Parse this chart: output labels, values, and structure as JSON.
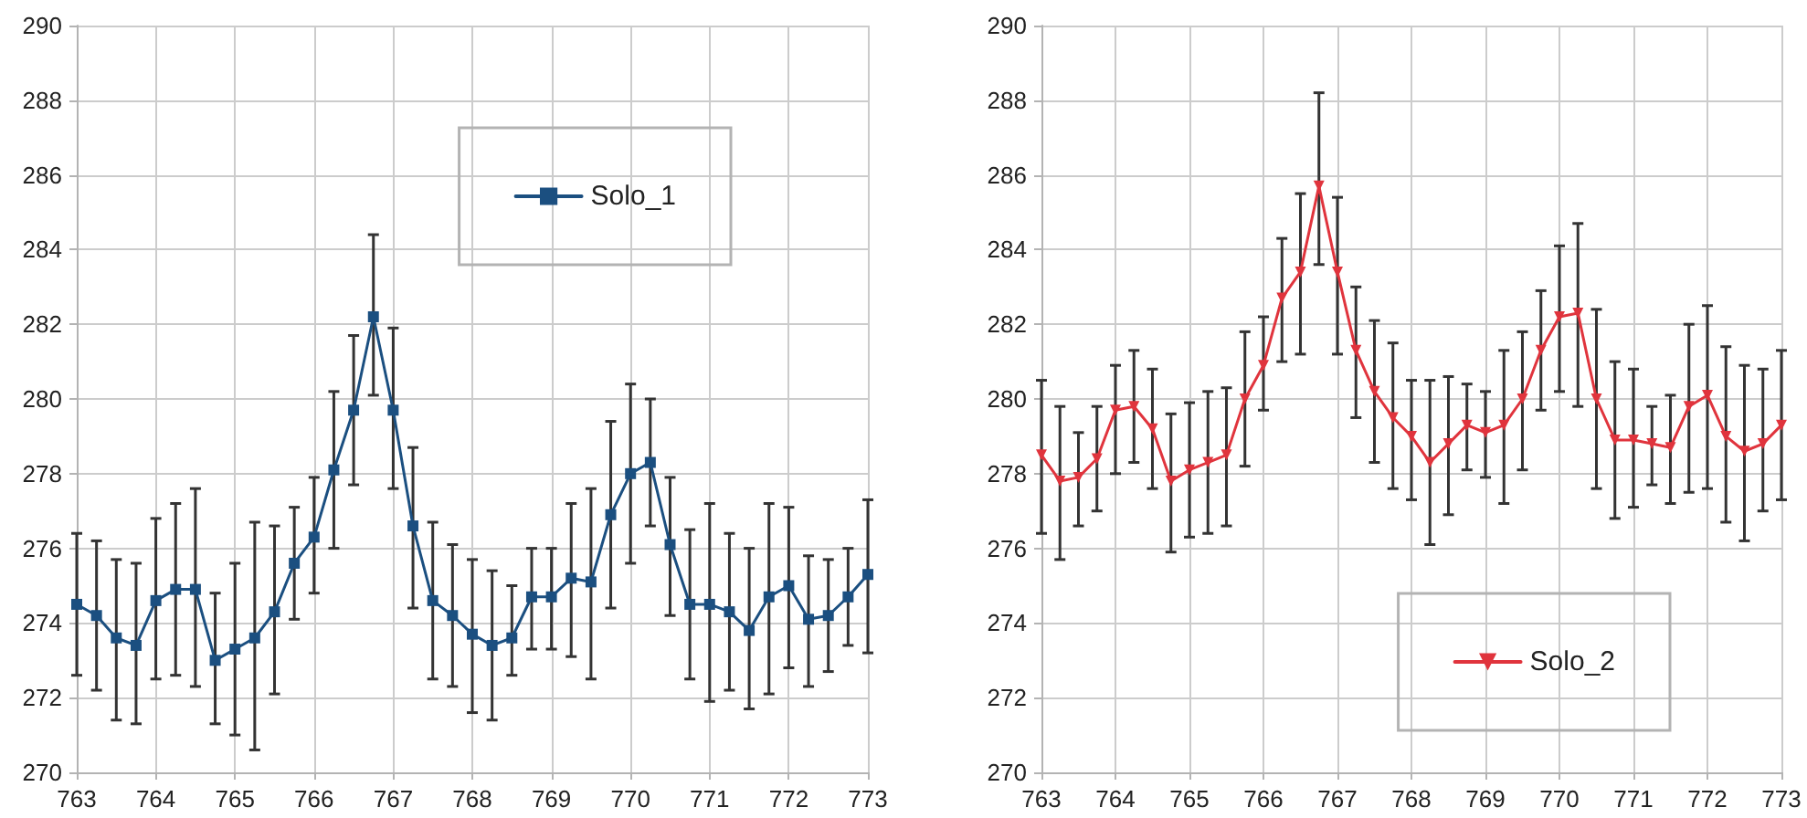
{
  "chart_data": [
    {
      "type": "line",
      "x": [
        763,
        763.25,
        763.5,
        763.75,
        764,
        764.25,
        764.5,
        764.75,
        765,
        765.25,
        765.5,
        765.75,
        766,
        766.25,
        766.5,
        766.75,
        767,
        767.25,
        767.5,
        767.75,
        768,
        768.25,
        768.5,
        768.75,
        769,
        769.25,
        769.5,
        769.75,
        770,
        770.25,
        770.5,
        770.75,
        771,
        771.25,
        771.5,
        771.75,
        772,
        772.25,
        772.5,
        772.75,
        773
      ],
      "series": [
        {
          "name": "Solo_1",
          "color": "#1b4f80",
          "values": [
            274.5,
            274.2,
            273.6,
            273.4,
            274.6,
            274.9,
            274.9,
            273.0,
            273.3,
            273.6,
            274.3,
            275.6,
            276.3,
            278.1,
            279.7,
            282.2,
            279.7,
            276.6,
            274.6,
            274.2,
            273.7,
            273.4,
            273.6,
            274.7,
            274.7,
            275.2,
            275.1,
            276.9,
            278.0,
            278.3,
            276.1,
            274.5,
            274.5,
            274.3,
            273.8,
            274.7,
            275.0,
            274.1,
            274.2,
            274.7,
            275.3
          ],
          "errors": [
            [
              272.6,
              276.4
            ],
            [
              272.2,
              276.2
            ],
            [
              271.4,
              275.7
            ],
            [
              271.3,
              275.6
            ],
            [
              272.5,
              276.8
            ],
            [
              272.6,
              277.2
            ],
            [
              272.3,
              277.6
            ],
            [
              271.3,
              274.8
            ],
            [
              271.0,
              275.6
            ],
            [
              270.6,
              276.7
            ],
            [
              272.1,
              276.6
            ],
            [
              274.1,
              277.1
            ],
            [
              274.8,
              277.9
            ],
            [
              276.0,
              280.2
            ],
            [
              277.7,
              281.7
            ],
            [
              280.1,
              284.4
            ],
            [
              277.6,
              281.9
            ],
            [
              274.4,
              278.7
            ],
            [
              272.5,
              276.7
            ],
            [
              272.3,
              276.1
            ],
            [
              271.6,
              275.7
            ],
            [
              271.4,
              275.4
            ],
            [
              272.6,
              275.0
            ],
            [
              273.3,
              276.0
            ],
            [
              273.3,
              276.0
            ],
            [
              273.1,
              277.2
            ],
            [
              272.5,
              277.6
            ],
            [
              274.4,
              279.4
            ],
            [
              275.6,
              280.4
            ],
            [
              276.6,
              280.0
            ],
            [
              274.2,
              277.9
            ],
            [
              272.5,
              276.5
            ],
            [
              271.9,
              277.2
            ],
            [
              272.2,
              276.4
            ],
            [
              271.7,
              276.0
            ],
            [
              272.1,
              277.2
            ],
            [
              272.8,
              277.1
            ],
            [
              272.3,
              275.8
            ],
            [
              272.7,
              275.7
            ],
            [
              273.4,
              276.0
            ],
            [
              273.2,
              277.3
            ]
          ]
        }
      ],
      "xlim": [
        763,
        773
      ],
      "xticks": [
        763,
        764,
        765,
        766,
        767,
        768,
        769,
        770,
        771,
        772,
        773
      ],
      "ylim": [
        270,
        290
      ],
      "yticks": [
        270,
        272,
        274,
        276,
        278,
        280,
        282,
        284,
        286,
        288,
        290
      ],
      "grid": true,
      "legend": "top right",
      "marker": "square",
      "line_style": "solid"
    },
    {
      "type": "line",
      "x": [
        763,
        763.25,
        763.5,
        763.75,
        764,
        764.25,
        764.5,
        764.75,
        765,
        765.25,
        765.5,
        765.75,
        766,
        766.25,
        766.5,
        766.75,
        767,
        767.25,
        767.5,
        767.75,
        768,
        768.25,
        768.5,
        768.75,
        769,
        769.25,
        769.5,
        769.75,
        770,
        770.25,
        770.5,
        770.75,
        771,
        771.25,
        771.5,
        771.75,
        772,
        772.25,
        772.5,
        772.75,
        773
      ],
      "series": [
        {
          "name": "Solo_2",
          "color": "#e0343d",
          "values": [
            278.5,
            277.8,
            277.9,
            278.4,
            279.7,
            279.8,
            279.2,
            277.8,
            278.1,
            278.3,
            278.5,
            280.0,
            280.9,
            282.7,
            283.4,
            285.7,
            283.4,
            281.3,
            280.2,
            279.5,
            279.0,
            278.3,
            278.8,
            279.3,
            279.1,
            279.3,
            280.0,
            281.3,
            282.2,
            282.3,
            280.0,
            278.9,
            278.9,
            278.8,
            278.7,
            279.8,
            280.1,
            279.0,
            278.6,
            278.8,
            279.3
          ],
          "errors": [
            [
              276.4,
              280.5
            ],
            [
              275.7,
              279.8
            ],
            [
              276.6,
              279.1
            ],
            [
              277.0,
              279.8
            ],
            [
              278.0,
              280.9
            ],
            [
              278.3,
              281.3
            ],
            [
              277.6,
              280.8
            ],
            [
              275.9,
              279.6
            ],
            [
              276.3,
              279.9
            ],
            [
              276.4,
              280.2
            ],
            [
              276.6,
              280.3
            ],
            [
              278.2,
              281.8
            ],
            [
              279.7,
              282.2
            ],
            [
              281.0,
              284.3
            ],
            [
              281.2,
              285.5
            ],
            [
              283.6,
              288.2
            ],
            [
              281.2,
              285.4
            ],
            [
              279.5,
              283.0
            ],
            [
              278.3,
              282.1
            ],
            [
              277.6,
              281.5
            ],
            [
              277.3,
              280.5
            ],
            [
              276.1,
              280.5
            ],
            [
              276.9,
              280.6
            ],
            [
              278.1,
              280.4
            ],
            [
              277.9,
              280.2
            ],
            [
              277.2,
              281.3
            ],
            [
              278.1,
              281.8
            ],
            [
              279.7,
              282.9
            ],
            [
              280.2,
              284.1
            ],
            [
              279.8,
              284.7
            ],
            [
              277.6,
              282.4
            ],
            [
              276.8,
              281.0
            ],
            [
              277.1,
              280.8
            ],
            [
              277.7,
              279.8
            ],
            [
              277.2,
              280.1
            ],
            [
              277.5,
              282.0
            ],
            [
              277.6,
              282.5
            ],
            [
              276.7,
              281.4
            ],
            [
              276.2,
              280.9
            ],
            [
              277.0,
              280.8
            ],
            [
              277.3,
              281.3
            ]
          ]
        }
      ],
      "xlim": [
        763,
        773
      ],
      "xticks": [
        763,
        764,
        765,
        766,
        767,
        768,
        769,
        770,
        771,
        772,
        773
      ],
      "ylim": [
        270,
        290
      ],
      "yticks": [
        270,
        272,
        274,
        276,
        278,
        280,
        282,
        284,
        286,
        288,
        290
      ],
      "grid": true,
      "legend": "bottom right",
      "marker": "triangle",
      "line_style": "solid"
    }
  ]
}
